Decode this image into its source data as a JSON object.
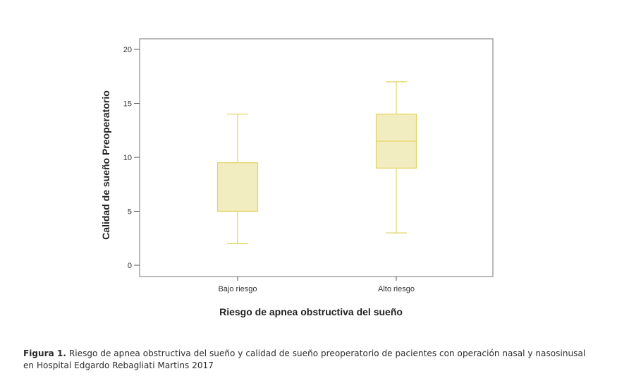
{
  "chart_data": {
    "type": "boxplot",
    "xlabel": "Riesgo de apnea obstructiva del sueño",
    "ylabel": "Calidad de sueño Preoperatorio",
    "ylim": [
      0,
      21
    ],
    "yticks": [
      0,
      5,
      10,
      15,
      20
    ],
    "categories": [
      "Bajo riesgo",
      "Alto riesgo"
    ],
    "boxes": [
      {
        "category": "Bajo riesgo",
        "min": 2,
        "q1": 5,
        "median": 5,
        "q3": 9.5,
        "max": 14
      },
      {
        "category": "Alto riesgo",
        "min": 3,
        "q1": 9,
        "median": 11.5,
        "q3": 14,
        "max": 17
      }
    ],
    "colors": {
      "box_fill": "#f2edc0",
      "box_stroke": "#e3d462",
      "axis": "#555555",
      "frame": "#777777"
    }
  },
  "caption": {
    "label": "Figura 1.",
    "text": "Riesgo de apnea obstructiva del sueño y calidad de sueño preoperatorio de pacientes con operación nasal y nasosinusal en Hospital Edgardo Rebagliati Martins 2017"
  }
}
